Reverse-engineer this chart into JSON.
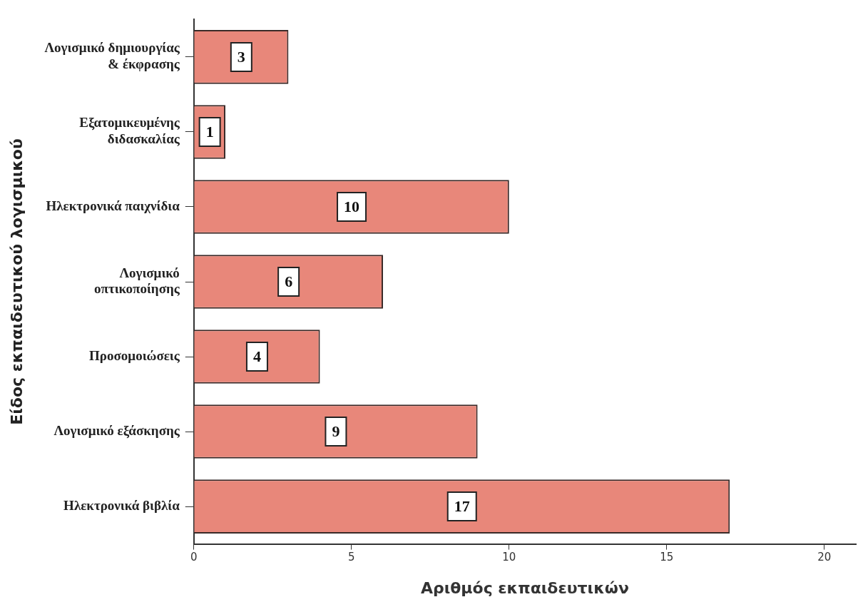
{
  "chart_data": {
    "type": "bar",
    "orientation": "horizontal",
    "xlabel": "Αριθμός εκπαιδευτικών",
    "ylabel": "Είδος εκπαιδευτικού λογισμικού",
    "categories": [
      "Λογισμικό δημιουργίας\n& έκφρασης",
      "Εξατομικευμένης\nδιδασκαλίας",
      "Ηλεκτρονικά παιχνίδια",
      "Λογισμικό\nοπτικοποίησης",
      "Προσομοιώσεις",
      "Λογισμικό εξάσκησης",
      "Ηλεκτρονικά βιβλία"
    ],
    "values": [
      3,
      1,
      10,
      6,
      4,
      9,
      17
    ],
    "color": "#e8877a",
    "xlim": [
      0,
      21
    ],
    "xticks": [
      0,
      5,
      10,
      15,
      20
    ],
    "data_labels": true,
    "grid": false,
    "legend": false
  }
}
